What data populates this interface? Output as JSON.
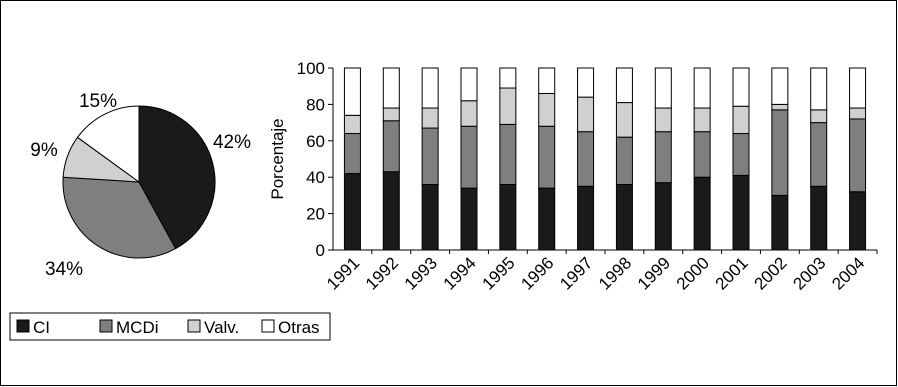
{
  "chart_data": [
    {
      "type": "pie",
      "labels": [
        "CI",
        "MCDi",
        "Valv.",
        "Otras"
      ],
      "values": [
        42,
        34,
        9,
        15
      ],
      "value_labels": [
        "42%",
        "34%",
        "9%",
        "15%"
      ],
      "colors": [
        "#1a1a1a",
        "#7f7f7f",
        "#d0d0d0",
        "#ffffff"
      ]
    },
    {
      "type": "bar",
      "stacked": true,
      "categories": [
        "1991",
        "1992",
        "1993",
        "1994",
        "1995",
        "1996",
        "1997",
        "1998",
        "1999",
        "2000",
        "2001",
        "2002",
        "2003",
        "2004"
      ],
      "series": [
        {
          "name": "CI",
          "color": "#1a1a1a",
          "values": [
            42,
            43,
            36,
            34,
            36,
            34,
            35,
            36,
            37,
            40,
            41,
            30,
            35,
            32
          ]
        },
        {
          "name": "MCDi",
          "color": "#7f7f7f",
          "values": [
            22,
            28,
            31,
            34,
            33,
            34,
            30,
            26,
            28,
            25,
            23,
            47,
            35,
            40
          ]
        },
        {
          "name": "Valv.",
          "color": "#d0d0d0",
          "values": [
            10,
            7,
            11,
            14,
            20,
            18,
            19,
            19,
            13,
            13,
            15,
            3,
            7,
            6
          ]
        },
        {
          "name": "Otras",
          "color": "#ffffff",
          "values": [
            26,
            22,
            22,
            18,
            11,
            14,
            16,
            19,
            22,
            22,
            21,
            20,
            23,
            22
          ]
        }
      ],
      "ylabel": "Porcentaje",
      "ylim": [
        0,
        100
      ],
      "yticks": [
        0,
        20,
        40,
        60,
        80,
        100
      ],
      "legend_position": "bottom-left"
    }
  ],
  "legend": {
    "items": [
      {
        "label": "CI",
        "color": "#1a1a1a"
      },
      {
        "label": "MCDi",
        "color": "#7f7f7f"
      },
      {
        "label": "Valv.",
        "color": "#d0d0d0"
      },
      {
        "label": "Otras",
        "color": "#ffffff"
      }
    ]
  }
}
